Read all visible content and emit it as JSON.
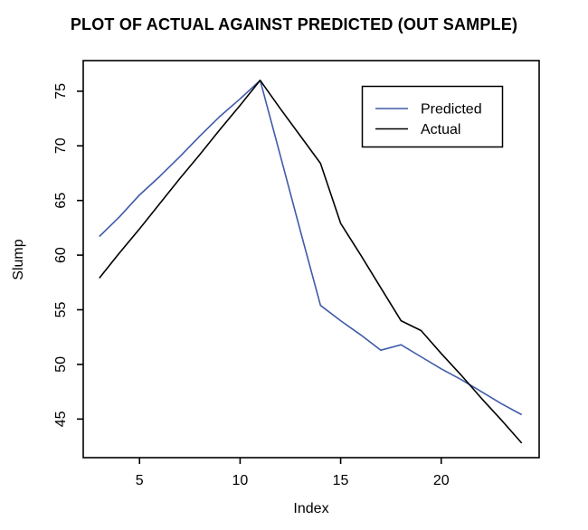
{
  "chart_data": {
    "type": "line",
    "title": "PLOT OF ACTUAL AGAINST PREDICTED (OUT SAMPLE)",
    "xlabel": "Index",
    "ylabel": "Slump",
    "x": [
      3,
      4,
      5,
      6,
      7,
      8,
      9,
      10,
      11,
      12,
      13,
      14,
      15,
      16,
      17,
      18,
      19,
      20,
      21,
      22,
      23,
      24
    ],
    "series": [
      {
        "name": "Predicted",
        "color": "#3f5ba9",
        "values": [
          61.7,
          63.5,
          65.5,
          67.2,
          69.0,
          70.9,
          72.7,
          74.3,
          76.0,
          69.1,
          62.2,
          55.4,
          54.0,
          52.7,
          51.3,
          51.8,
          50.7,
          49.6,
          48.6,
          47.5,
          46.4,
          45.4
        ]
      },
      {
        "name": "Actual",
        "color": "#000000",
        "values": [
          57.9,
          60.2,
          62.4,
          64.7,
          67.0,
          69.2,
          71.5,
          73.7,
          76.0,
          73.4,
          70.9,
          68.4,
          62.9,
          60.0,
          57.0,
          54.0,
          53.1,
          51.0,
          49.0,
          46.9,
          44.9,
          42.8
        ]
      }
    ],
    "x_ticks": [
      5,
      10,
      15,
      20
    ],
    "y_ticks": [
      45,
      50,
      55,
      60,
      65,
      70,
      75
    ],
    "xlim": [
      2.2,
      24.87
    ],
    "ylim": [
      41.47,
      77.8
    ],
    "grid": false,
    "legend_position": "top-right",
    "axis_color": "#000000",
    "background_color": "#ffffff"
  }
}
